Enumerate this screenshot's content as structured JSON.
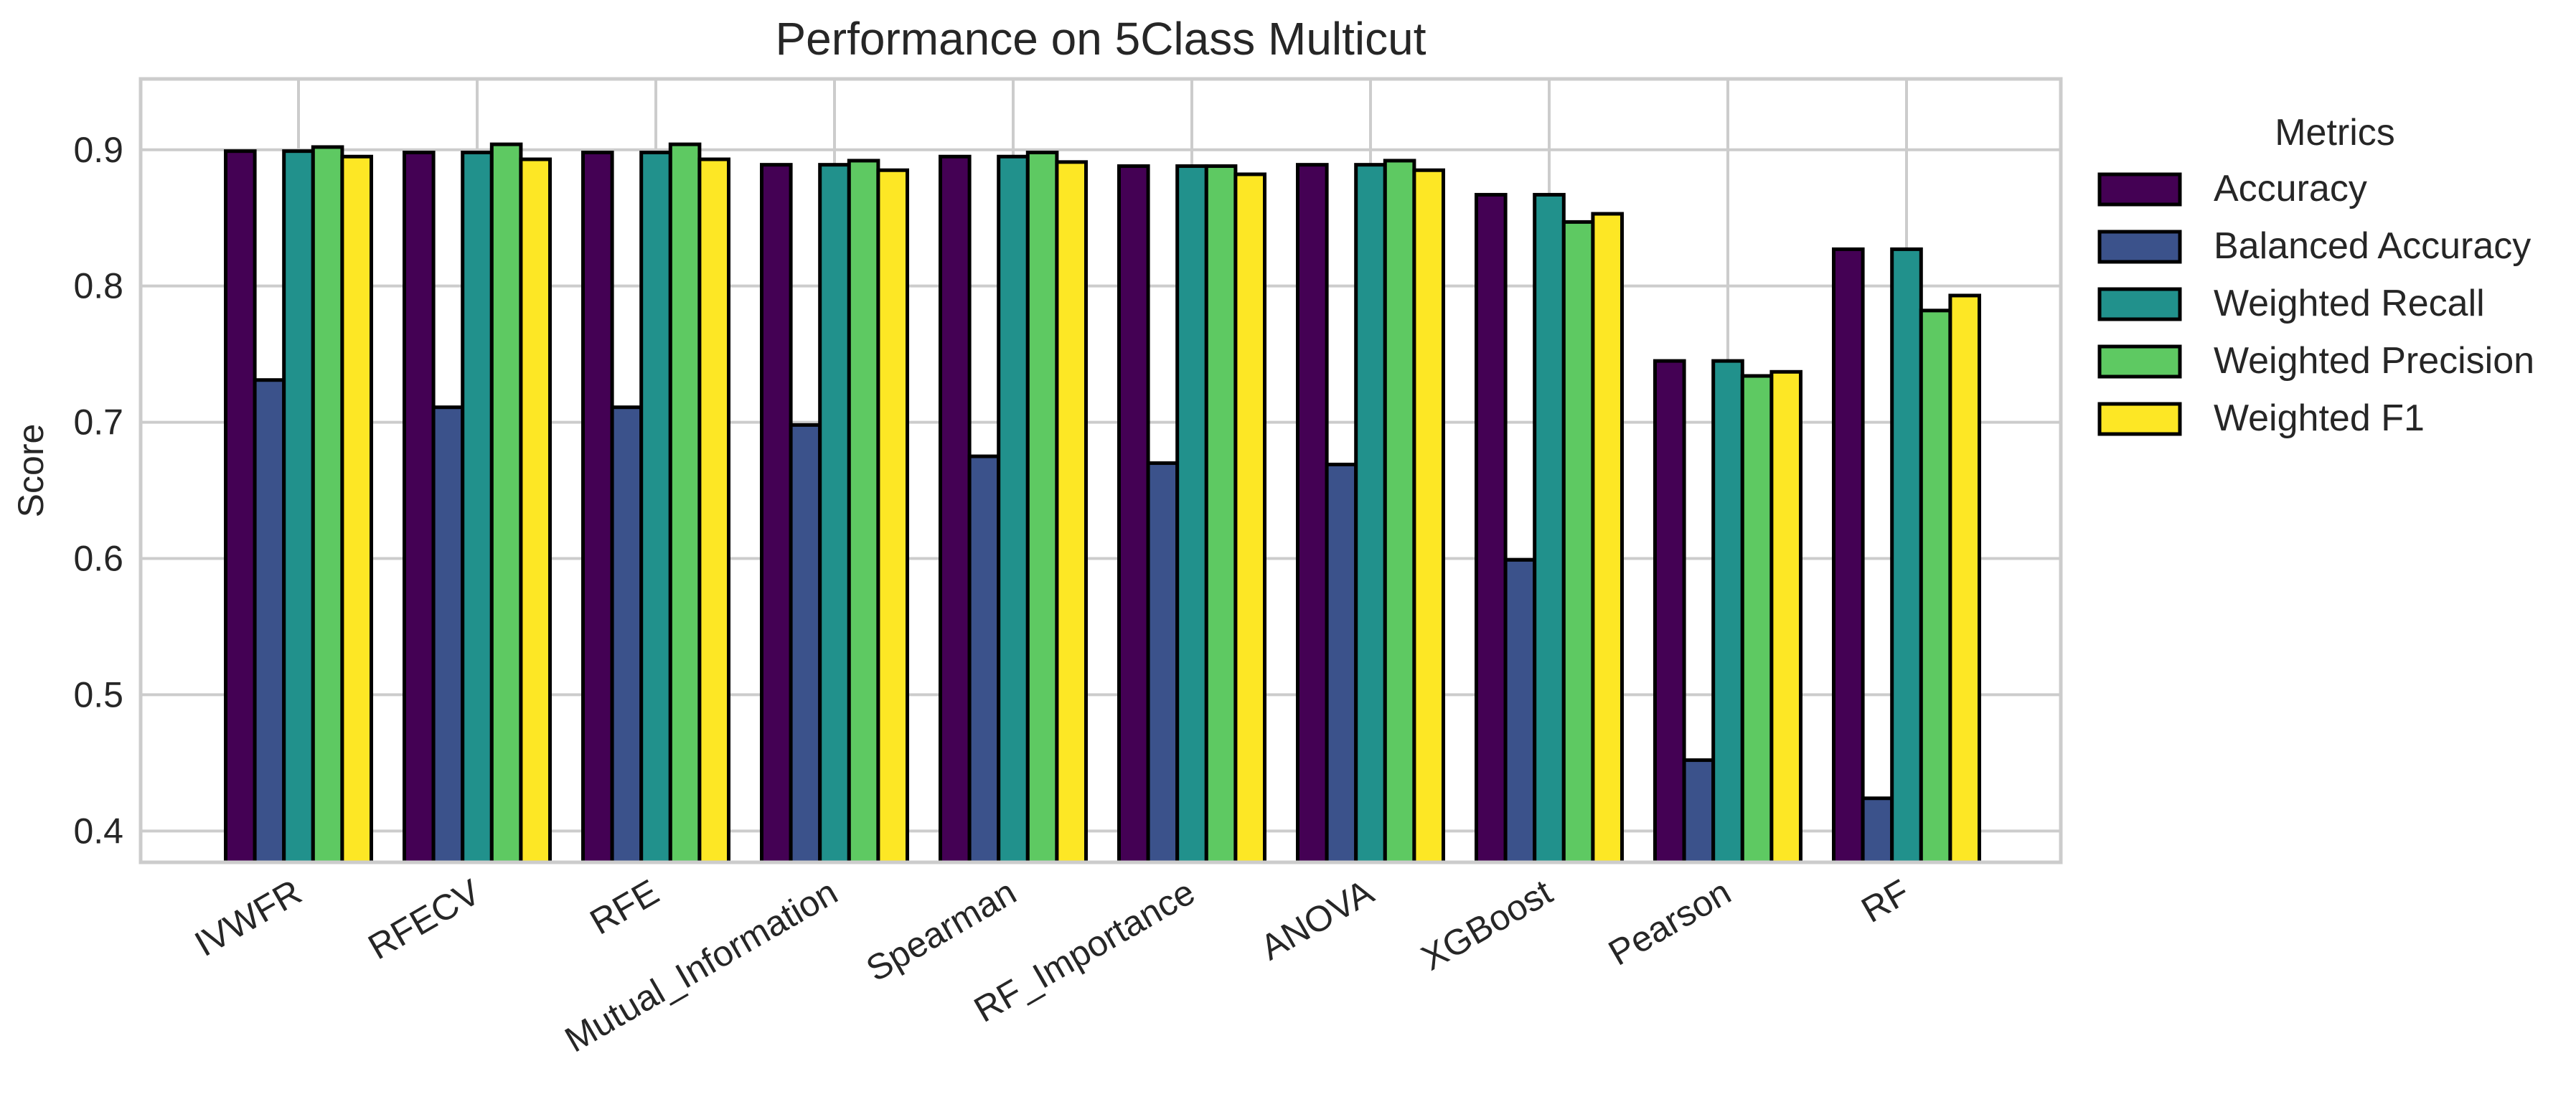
{
  "chart_data": {
    "type": "bar",
    "title": "Performance on 5Class Multicut",
    "xlabel": "",
    "ylabel": "Score",
    "ylim": [
      0.377,
      0.952
    ],
    "yticks": [
      0.4,
      0.5,
      0.6,
      0.7,
      0.8,
      0.9
    ],
    "grid": true,
    "legend": {
      "title": "Metrics",
      "placement": "outside-right"
    },
    "categories": [
      "IVWFR",
      "RFECV",
      "RFE",
      "Mutual_Information",
      "Spearman",
      "RF_Importance",
      "ANOVA",
      "XGBoost",
      "Pearson",
      "RF"
    ],
    "series": [
      {
        "name": "Accuracy",
        "color": "#440154",
        "values": [
          0.899,
          0.898,
          0.898,
          0.889,
          0.895,
          0.888,
          0.889,
          0.867,
          0.745,
          0.827
        ]
      },
      {
        "name": "Balanced Accuracy",
        "color": "#3b528b",
        "values": [
          0.731,
          0.711,
          0.711,
          0.698,
          0.675,
          0.67,
          0.669,
          0.599,
          0.452,
          0.424
        ]
      },
      {
        "name": "Weighted Recall",
        "color": "#21918c",
        "values": [
          0.899,
          0.898,
          0.898,
          0.889,
          0.895,
          0.888,
          0.889,
          0.867,
          0.745,
          0.827
        ]
      },
      {
        "name": "Weighted Precision",
        "color": "#5ec962",
        "values": [
          0.902,
          0.904,
          0.904,
          0.892,
          0.898,
          0.888,
          0.892,
          0.847,
          0.734,
          0.782
        ]
      },
      {
        "name": "Weighted F1",
        "color": "#fde725",
        "values": [
          0.895,
          0.893,
          0.893,
          0.885,
          0.891,
          0.882,
          0.885,
          0.853,
          0.737,
          0.793
        ]
      }
    ]
  }
}
